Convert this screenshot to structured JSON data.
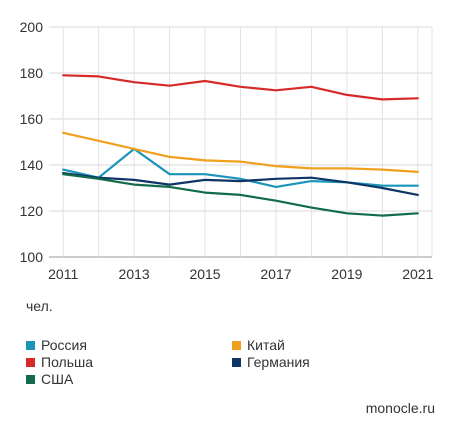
{
  "chart_data": {
    "type": "line",
    "x": [
      2011,
      2012,
      2013,
      2014,
      2015,
      2016,
      2017,
      2018,
      2019,
      2020,
      2021
    ],
    "x_tick_labels": [
      "2011",
      "2013",
      "2015",
      "2017",
      "2019",
      "2021"
    ],
    "y_ticks": [
      100,
      120,
      140,
      160,
      180,
      200
    ],
    "ylim": [
      100,
      200
    ],
    "xlim": [
      2010.6,
      2021.4
    ],
    "ylabel": "чел.",
    "grid": true,
    "legend_placement": "bottom",
    "series": [
      {
        "name": "Россия",
        "color": "#1a95b8",
        "values": [
          138,
          134.5,
          147,
          136,
          136,
          134,
          130.5,
          133,
          132.5,
          131,
          131
        ]
      },
      {
        "name": "Китай",
        "color": "#f0a01e",
        "values": [
          154,
          150.5,
          147,
          143.5,
          142,
          141.5,
          139.5,
          138.5,
          138.5,
          138,
          137
        ]
      },
      {
        "name": "Польша",
        "color": "#d62a2a",
        "values": [
          179,
          178.5,
          176,
          174.5,
          176.5,
          174,
          172.5,
          174,
          170.5,
          168.5,
          169
        ]
      },
      {
        "name": "Германия",
        "color": "#0e3566",
        "values": [
          136.5,
          134.5,
          133.5,
          131.5,
          133.5,
          133,
          134,
          134.5,
          132.5,
          130,
          127
        ]
      },
      {
        "name": "США",
        "color": "#126b4a",
        "values": [
          136,
          134,
          131.5,
          130.5,
          128,
          127,
          124.5,
          121.5,
          119,
          118,
          119
        ]
      }
    ]
  },
  "legend": [
    {
      "label": "Россия",
      "color": "#1a95b8"
    },
    {
      "label": "Китай",
      "color": "#f0a01e"
    },
    {
      "label": "Польша",
      "color": "#d62a2a"
    },
    {
      "label": "Германия",
      "color": "#0e3566"
    },
    {
      "label": "США",
      "color": "#126b4a"
    }
  ],
  "unit_label": "чел.",
  "source": "monocle.ru"
}
